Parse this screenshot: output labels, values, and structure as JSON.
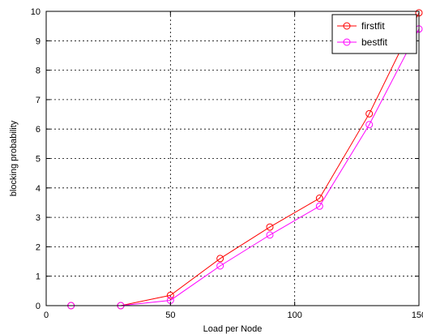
{
  "chart_data": {
    "type": "line",
    "title": "",
    "xlabel": "Load per Node",
    "ylabel": "blocking probability",
    "xlim": [
      0,
      150
    ],
    "ylim": [
      0,
      10
    ],
    "xticks": [
      0,
      50,
      100,
      150
    ],
    "xtick_labels": [
      "0",
      "50",
      "100",
      "150"
    ],
    "yticks": [
      0,
      1,
      2,
      3,
      4,
      5,
      6,
      7,
      8,
      9,
      10
    ],
    "ytick_labels": [
      "0",
      "1",
      "2",
      "3",
      "4",
      "5",
      "6",
      "7",
      "8",
      "9",
      "10"
    ],
    "grid": true,
    "legend_position": "top-right",
    "x": [
      10,
      30,
      50,
      70,
      90,
      110,
      130,
      150
    ],
    "series": [
      {
        "name": "firstfit",
        "color": "#ff0000",
        "marker": "circle",
        "values": [
          0,
          0,
          0.35,
          1.6,
          2.67,
          3.65,
          6.52,
          9.95
        ]
      },
      {
        "name": "bestfit",
        "color": "#ff00ff",
        "marker": "circle",
        "values": [
          0,
          0,
          0.18,
          1.35,
          2.4,
          3.38,
          6.15,
          9.4
        ]
      }
    ]
  }
}
